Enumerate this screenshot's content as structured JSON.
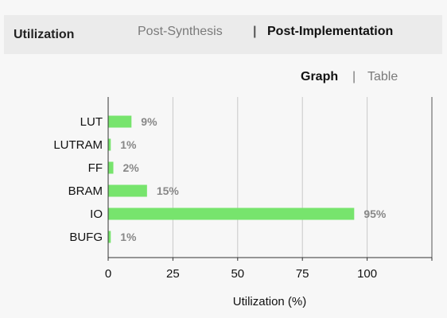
{
  "header": {
    "title": "Utilization",
    "tabs": [
      {
        "label": "Post-Synthesis",
        "active": false
      },
      {
        "label": "Post-Implementation",
        "active": true
      }
    ],
    "tab_separator": "|"
  },
  "view": {
    "options": [
      {
        "label": "Graph",
        "active": true
      },
      {
        "label": "Table",
        "active": false
      }
    ],
    "separator": "|"
  },
  "chart_data": {
    "type": "bar",
    "orientation": "horizontal",
    "categories": [
      "LUT",
      "LUTRAM",
      "FF",
      "BRAM",
      "IO",
      "BUFG"
    ],
    "values": [
      9,
      1,
      2,
      15,
      95,
      1
    ],
    "value_labels": [
      "9%",
      "1%",
      "2%",
      "15%",
      "95%",
      "1%"
    ],
    "xlabel": "Utilization (%)",
    "xlim": [
      0,
      125
    ],
    "xticks": [
      0,
      25,
      50,
      75,
      100
    ],
    "grid": true,
    "bar_color": "#77e46d"
  }
}
